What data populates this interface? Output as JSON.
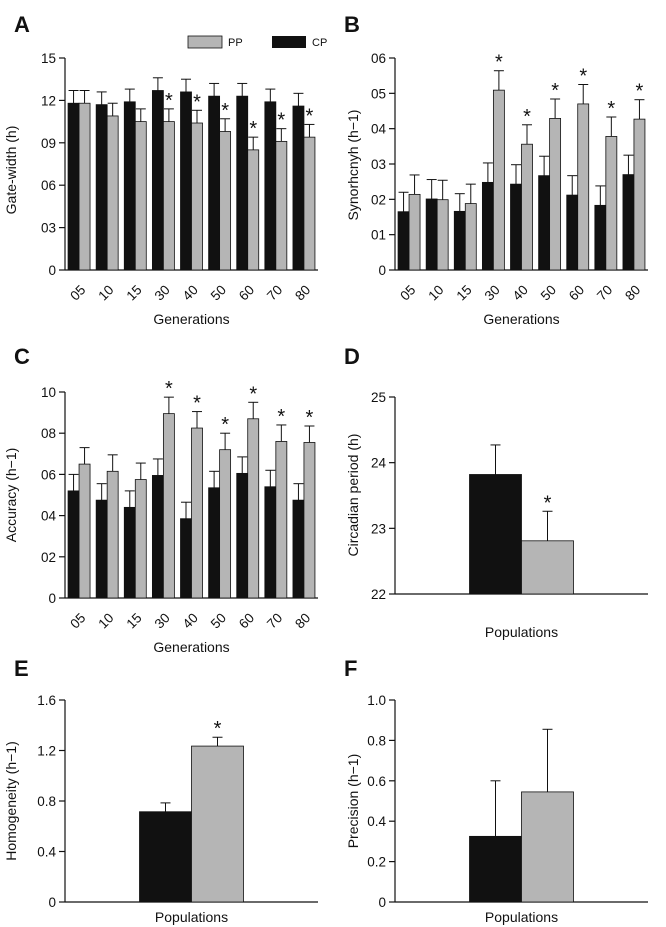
{
  "legend": [
    {
      "key": "PP",
      "label": "PP",
      "color": "#b5b5b5"
    },
    {
      "key": "CP",
      "label": "CP",
      "color": "#111111"
    }
  ],
  "chart_data": [
    {
      "panel": "A",
      "type": "bar",
      "categories": [
        "05",
        "10",
        "15",
        "30",
        "40",
        "50",
        "60",
        "70",
        "80"
      ],
      "series": [
        {
          "name": "CP",
          "color": "#111111",
          "values": [
            11.8,
            11.7,
            11.9,
            12.7,
            12.6,
            12.3,
            12.3,
            11.9,
            11.6
          ],
          "errors": [
            0.9,
            0.9,
            0.9,
            0.9,
            0.9,
            0.9,
            0.9,
            0.9,
            0.9
          ]
        },
        {
          "name": "PP",
          "color": "#b5b5b5",
          "values": [
            11.8,
            10.9,
            10.5,
            10.5,
            10.4,
            9.8,
            8.5,
            9.1,
            9.4
          ],
          "errors": [
            0.9,
            0.9,
            0.9,
            0.9,
            0.9,
            0.9,
            0.9,
            0.9,
            0.9
          ]
        }
      ],
      "significant_index": [
        3,
        4,
        5,
        6,
        7,
        8
      ],
      "star_label": "*",
      "xlabel": "Generations",
      "ylabel": "Gate-width (h)",
      "ylim": [
        0,
        15
      ],
      "yticks": [
        0,
        3,
        6,
        9,
        12,
        15
      ],
      "ytick_labels": [
        "0",
        "03",
        "06",
        "09",
        "12",
        "15"
      ]
    },
    {
      "panel": "B",
      "type": "bar",
      "categories": [
        "05",
        "10",
        "15",
        "30",
        "40",
        "50",
        "60",
        "70",
        "80"
      ],
      "series": [
        {
          "name": "CP",
          "color": "#111111",
          "values": [
            0.165,
            0.201,
            0.166,
            0.248,
            0.243,
            0.267,
            0.212,
            0.183,
            0.27
          ],
          "errors": [
            0.055,
            0.055,
            0.05,
            0.055,
            0.055,
            0.055,
            0.055,
            0.055,
            0.055
          ]
        },
        {
          "name": "PP",
          "color": "#b5b5b5",
          "values": [
            0.214,
            0.199,
            0.188,
            0.509,
            0.356,
            0.429,
            0.47,
            0.378,
            0.427
          ],
          "errors": [
            0.055,
            0.055,
            0.055,
            0.055,
            0.055,
            0.055,
            0.055,
            0.055,
            0.055
          ]
        }
      ],
      "significant_index": [
        3,
        4,
        5,
        6,
        7,
        8
      ],
      "star_label": "*",
      "xlabel": "Generations",
      "ylabel": "Synorhcnyh (h−1)",
      "ylim": [
        0,
        0.6
      ],
      "yticks": [
        0,
        0.1,
        0.2,
        0.3,
        0.4,
        0.5,
        0.6
      ],
      "ytick_labels": [
        "0",
        "01",
        "02",
        "03",
        "04",
        "05",
        "06"
      ]
    },
    {
      "panel": "C",
      "type": "bar",
      "categories": [
        "05",
        "10",
        "15",
        "30",
        "40",
        "50",
        "60",
        "70",
        "80"
      ],
      "series": [
        {
          "name": "CP",
          "color": "#111111",
          "values": [
            0.52,
            0.475,
            0.44,
            0.595,
            0.385,
            0.535,
            0.605,
            0.54,
            0.475
          ],
          "errors": [
            0.08,
            0.08,
            0.08,
            0.08,
            0.08,
            0.08,
            0.08,
            0.08,
            0.08
          ]
        },
        {
          "name": "PP",
          "color": "#b5b5b5",
          "values": [
            0.65,
            0.615,
            0.575,
            0.895,
            0.825,
            0.72,
            0.87,
            0.76,
            0.755
          ],
          "errors": [
            0.08,
            0.08,
            0.08,
            0.08,
            0.08,
            0.08,
            0.08,
            0.08,
            0.08
          ]
        }
      ],
      "significant_index": [
        3,
        4,
        5,
        6,
        7,
        8
      ],
      "star_label": "*",
      "xlabel": "Generations",
      "ylabel": "Accuracy (h−1)",
      "ylim": [
        0,
        1.0
      ],
      "yticks": [
        0,
        0.2,
        0.4,
        0.6,
        0.8,
        1.0
      ],
      "ytick_labels": [
        "0",
        "02",
        "04",
        "06",
        "08",
        "10"
      ]
    },
    {
      "panel": "D",
      "type": "bar",
      "categories": [
        "CP",
        "PP"
      ],
      "values": [
        23.82,
        22.81
      ],
      "errors": [
        0.45,
        0.45
      ],
      "colors": [
        "#111111",
        "#b5b5b5"
      ],
      "significant_index": [
        1
      ],
      "star_label": "*",
      "xlabel": "Populations",
      "ylabel": "Circadian period (h)",
      "ylim": [
        22,
        25
      ],
      "yticks": [
        22,
        23,
        24,
        25
      ],
      "ytick_labels": [
        "22",
        "23",
        "24",
        "25"
      ]
    },
    {
      "panel": "E",
      "type": "bar",
      "categories": [
        "CP",
        "PP"
      ],
      "values": [
        0.715,
        1.235
      ],
      "errors": [
        0.07,
        0.07
      ],
      "colors": [
        "#111111",
        "#b5b5b5"
      ],
      "significant_index": [
        1
      ],
      "star_label": "*",
      "xlabel": "Populations",
      "ylabel": "Homogeneity (h−1)",
      "ylim": [
        0,
        1.6
      ],
      "yticks": [
        0,
        0.4,
        0.8,
        1.2,
        1.6
      ],
      "ytick_labels": [
        "0",
        "0.4",
        "0.8",
        "1.2",
        "1.6"
      ]
    },
    {
      "panel": "F",
      "type": "bar",
      "categories": [
        "CP",
        "PP"
      ],
      "values": [
        0.325,
        0.545
      ],
      "errors": [
        0.275,
        0.31
      ],
      "colors": [
        "#111111",
        "#b5b5b5"
      ],
      "significant_index": [],
      "star_label": "*",
      "xlabel": "Populations",
      "ylabel": "Precision (h−1)",
      "ylim": [
        0,
        1.0
      ],
      "yticks": [
        0,
        0.2,
        0.4,
        0.6,
        0.8,
        1.0
      ],
      "ytick_labels": [
        "0",
        "0.2",
        "0.4",
        "0.6",
        "0.8",
        "1.0"
      ]
    }
  ]
}
